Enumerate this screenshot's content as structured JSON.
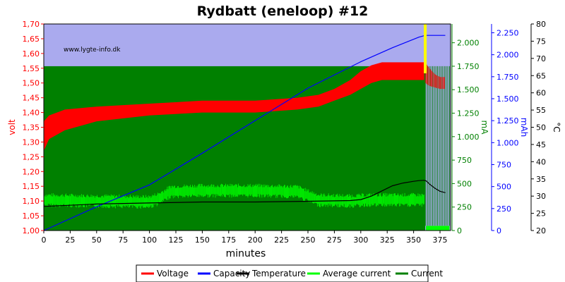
{
  "chart_data": {
    "type": "line",
    "title": "Rydbatt (eneloop) #12",
    "watermark": "www.lygte-info.dk",
    "xlabel": "minutes",
    "xlim": [
      0,
      385
    ],
    "x_ticks": [
      "0",
      "25",
      "50",
      "75",
      "100",
      "125",
      "150",
      "175",
      "200",
      "225",
      "250",
      "275",
      "300",
      "325",
      "350",
      "375"
    ],
    "grid": false,
    "colors": {
      "top_region": "#aaaaee",
      "current_region": "#008000",
      "voltage": "#ff0000",
      "capacity": "#0000ff",
      "temperature": "#000000",
      "average_current": "#00ff00",
      "current": "#008000",
      "marker": "#ffff00"
    },
    "axes": {
      "volt": {
        "label": "volt",
        "color": "#ff0000",
        "range": [
          1.0,
          1.7
        ],
        "ticks": [
          "1,00",
          "1,05",
          "1,10",
          "1,15",
          "1,20",
          "1,25",
          "1,30",
          "1,35",
          "1,40",
          "1,45",
          "1,50",
          "1,55",
          "1,60",
          "1,65",
          "1,70"
        ]
      },
      "mA": {
        "label": "mA",
        "color": "#008000",
        "range": [
          0,
          2200
        ],
        "ticks": [
          "0",
          "250",
          "500",
          "750",
          "1.000",
          "1.250",
          "1.500",
          "1.750",
          "2.000"
        ]
      },
      "mAh": {
        "label": "mAh",
        "color": "#0000ff",
        "range": [
          0,
          2350
        ],
        "ticks": [
          "0",
          "250",
          "500",
          "750",
          "1.000",
          "1.250",
          "1.500",
          "1.750",
          "2.000",
          "2.250"
        ]
      },
      "celsius": {
        "label": "°C",
        "color": "#000000",
        "range": [
          20,
          80
        ],
        "ticks": [
          "20",
          "25",
          "30",
          "35",
          "40",
          "45",
          "50",
          "55",
          "60",
          "65",
          "70",
          "75",
          "80"
        ]
      }
    },
    "current_level_mA": 1750,
    "current_level_after_mA": 50,
    "charge_end_min": 361,
    "voltage_band": {
      "x": [
        0,
        5,
        20,
        50,
        100,
        150,
        200,
        240,
        260,
        275,
        290,
        300,
        310,
        320,
        360
      ],
      "low": [
        1.27,
        1.31,
        1.34,
        1.37,
        1.39,
        1.4,
        1.4,
        1.41,
        1.42,
        1.44,
        1.46,
        1.48,
        1.5,
        1.51,
        1.51
      ],
      "high": [
        1.37,
        1.39,
        1.41,
        1.42,
        1.43,
        1.44,
        1.44,
        1.45,
        1.46,
        1.48,
        1.51,
        1.54,
        1.56,
        1.57,
        1.57
      ]
    },
    "voltage_after": {
      "x": [
        361,
        365,
        370,
        375,
        380
      ],
      "low": [
        1.5,
        1.49,
        1.485,
        1.48,
        1.48
      ],
      "high": [
        1.57,
        1.55,
        1.53,
        1.52,
        1.52
      ]
    },
    "series": [
      {
        "name": "Voltage",
        "axis": "volt",
        "color": "#ff0000"
      },
      {
        "name": "Capacity",
        "axis": "mAh",
        "color": "#0000ff",
        "x": [
          0,
          50,
          100,
          150,
          200,
          250,
          300,
          330,
          355,
          361,
          370,
          380
        ],
        "values": [
          0,
          270,
          520,
          880,
          1250,
          1620,
          1920,
          2080,
          2200,
          2220,
          2220,
          2220
        ]
      },
      {
        "name": "Temperature",
        "axis": "celsius",
        "color": "#000000",
        "x": [
          0,
          50,
          100,
          150,
          200,
          250,
          290,
          300,
          310,
          320,
          330,
          340,
          350,
          355,
          360,
          362,
          365,
          370,
          375,
          380
        ],
        "values": [
          27,
          27.7,
          28,
          28.3,
          28.3,
          28.5,
          28.7,
          29,
          30,
          31.5,
          33,
          33.8,
          34.3,
          34.5,
          34.6,
          34.4,
          33.5,
          32.3,
          31.4,
          31
        ]
      },
      {
        "name": "Average current",
        "axis": "mA",
        "color": "#00ff00",
        "x": [
          0,
          100,
          110,
          120,
          150,
          200,
          240,
          260,
          290,
          310,
          360
        ],
        "values": [
          330,
          310,
          350,
          420,
          430,
          430,
          420,
          330,
          320,
          330,
          330
        ]
      },
      {
        "name": "Current",
        "axis": "mA",
        "color": "#008000"
      }
    ]
  }
}
